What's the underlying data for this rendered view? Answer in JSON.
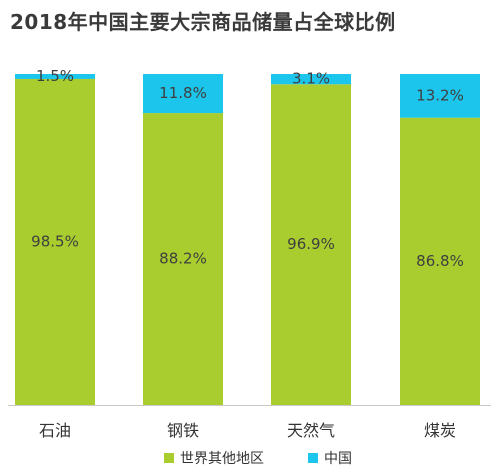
{
  "title": "2018年中国主要大宗商品储量占全球比例",
  "colors": {
    "world": "#a9cd2f",
    "china": "#1cc5ec",
    "axis": "#c8c8c8"
  },
  "chart_data": {
    "type": "bar",
    "stacked": true,
    "title": "2018年中国主要大宗商品储量占全球比例",
    "categories": [
      "石油",
      "钢铁",
      "天然气",
      "煤炭"
    ],
    "ylim": [
      0,
      100
    ],
    "unit": "%",
    "series": [
      {
        "name": "世界其他地区",
        "color": "#a9cd2f",
        "values": [
          98.5,
          88.2,
          96.9,
          86.8
        ],
        "labels": [
          "98.5%",
          "88.2%",
          "96.9%",
          "86.8%"
        ]
      },
      {
        "name": "中国",
        "color": "#1cc5ec",
        "values": [
          1.5,
          11.8,
          3.1,
          13.2
        ],
        "labels": [
          "1.5%",
          "11.8%",
          "3.1%",
          "13.2%"
        ]
      }
    ],
    "legend_position": "bottom-center",
    "grid": false
  }
}
